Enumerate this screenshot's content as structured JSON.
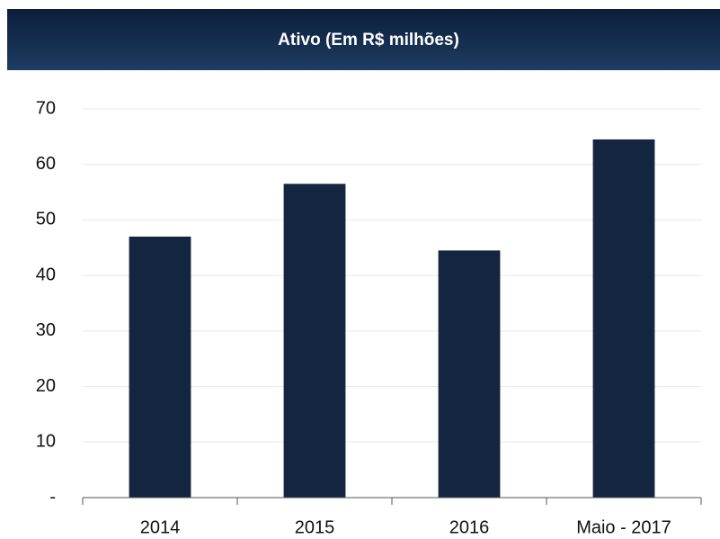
{
  "chart_data": {
    "type": "bar",
    "title": "Ativo (Em R$ milhões)",
    "categories": [
      "2014",
      "2015",
      "2016",
      "Maio - 2017"
    ],
    "values": [
      47,
      56.5,
      44.5,
      64.5
    ],
    "color": "#13253f",
    "ylim": [
      0,
      70
    ],
    "yticks": [
      {
        "value": 0,
        "label": "-"
      },
      10,
      20,
      30,
      40,
      50,
      60,
      70
    ],
    "grid": true
  }
}
